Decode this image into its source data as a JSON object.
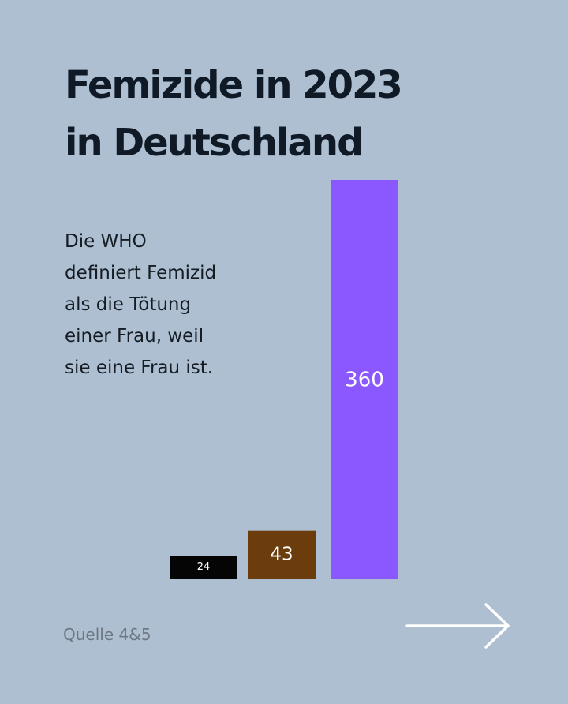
{
  "chart_data": {
    "type": "bar",
    "title": "Femizide in  2023 in Deutschland",
    "title_lines": [
      "Femizide in  2023",
      "in Deutschland"
    ],
    "xlabel": "",
    "ylabel": "",
    "grid": false,
    "legend": "none",
    "categories": [
      "",
      "",
      ""
    ],
    "values": [
      24,
      43,
      360
    ],
    "data_labels": [
      "24",
      "43",
      "360"
    ],
    "bar_colors": [
      "#050505",
      "#6b3d0c",
      "#8b57ff"
    ],
    "label_colors": [
      "#ffffff",
      "#ffffff",
      "#ffffff"
    ],
    "ylim": [
      0,
      360
    ]
  },
  "description_lines": [
    "Die WHO",
    "definiert Femizid",
    "als die Tötung",
    "einer Frau, weil",
    "sie eine Frau ist."
  ],
  "source": "Quelle 4&5",
  "navigation": {
    "next_icon": "arrow-right-icon",
    "arrow_color": "#ffffff"
  },
  "colors": {
    "background": "#adbfd1",
    "title": "#0f1a26",
    "text": "#151c24",
    "source": "#6e7883"
  }
}
